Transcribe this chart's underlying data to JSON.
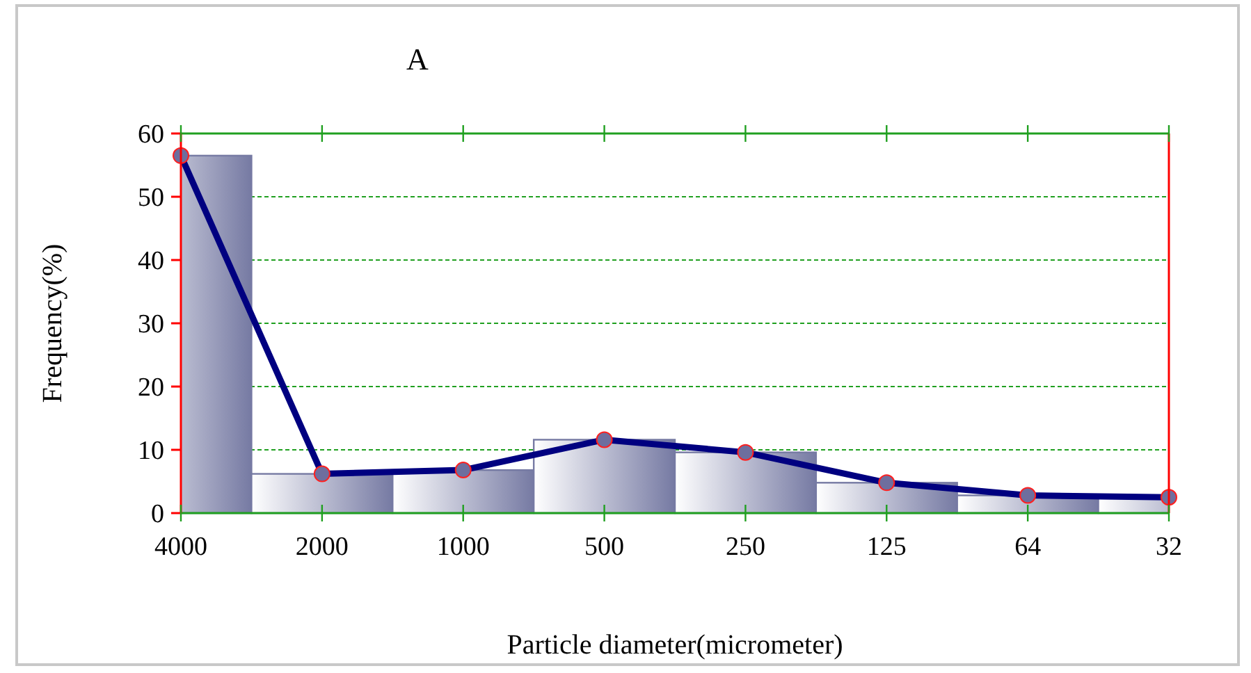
{
  "chart_data": {
    "type": "bar",
    "title": "A",
    "xlabel": "Particle diameter(micrometer)",
    "ylabel": "Frequency(%)",
    "categories": [
      "4000",
      "2000",
      "1000",
      "500",
      "250",
      "125",
      "64",
      "32"
    ],
    "series": [
      {
        "color": "#767aa3",
        "values": [
          56.5,
          6.2,
          6.8,
          11.6,
          9.6,
          4.8,
          2.8,
          2.5
        ]
      },
      {
        "type": "line",
        "color": "#000080",
        "marker": "circle",
        "values": [
          56.5,
          6.2,
          6.8,
          11.6,
          9.6,
          4.8,
          2.8,
          2.5
        ]
      }
    ],
    "ylim": [
      0,
      60
    ],
    "yticks": [
      0,
      10,
      20,
      30,
      40,
      50,
      60
    ],
    "grid": "y"
  }
}
